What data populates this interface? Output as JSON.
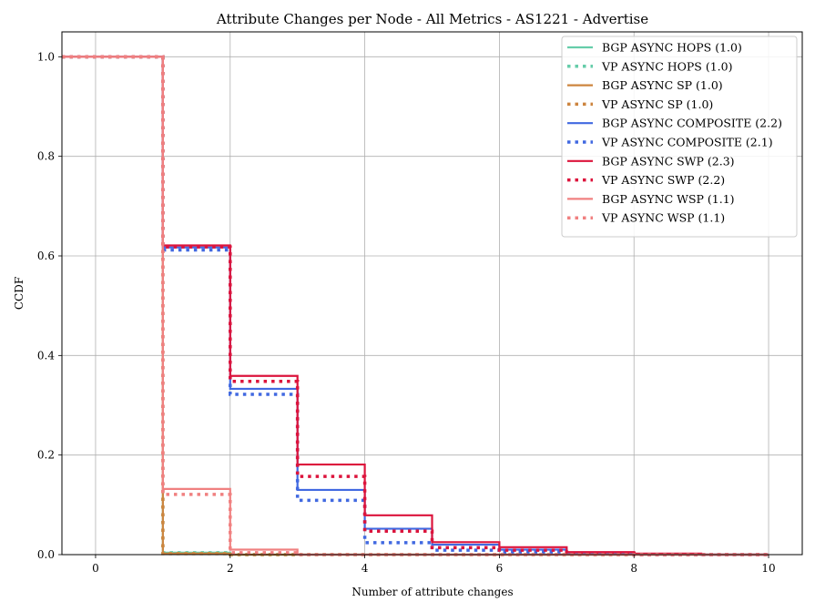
{
  "chart_data": {
    "type": "line",
    "title": "Attribute Changes per Node - All Metrics - AS1221 - Advertise",
    "xlabel": "Number of attribute changes",
    "ylabel": "CCDF",
    "xlim": [
      -0.5,
      10.5
    ],
    "ylim": [
      0,
      1.05
    ],
    "xticks": [
      0,
      2,
      4,
      6,
      8,
      10
    ],
    "yticks": [
      0.0,
      0.2,
      0.4,
      0.6,
      0.8,
      1.0
    ],
    "grid": true,
    "legend_position": "top-right",
    "series": [
      {
        "name": "BGP ASYNC HOPS (1.0)",
        "color": "#66cdaa",
        "dash": "solid",
        "x": [
          -0.5,
          1,
          2,
          3,
          4,
          5,
          6,
          7,
          8,
          9,
          10
        ],
        "y": [
          1.0,
          0.004,
          0.0,
          0.0,
          0.0,
          0.0,
          0.0,
          0.0,
          0.0,
          0.0,
          0.0
        ]
      },
      {
        "name": "VP ASYNC HOPS (1.0)",
        "color": "#66cdaa",
        "dash": "dotted",
        "x": [
          -0.5,
          1,
          2,
          3,
          4,
          5,
          6,
          7,
          8,
          9,
          10
        ],
        "y": [
          1.0,
          0.004,
          0.0,
          0.0,
          0.0,
          0.0,
          0.0,
          0.0,
          0.0,
          0.0,
          0.0
        ]
      },
      {
        "name": "BGP ASYNC SP (1.0)",
        "color": "#cd853f",
        "dash": "solid",
        "x": [
          -0.5,
          1,
          2,
          3,
          4,
          5,
          6,
          7,
          8,
          9,
          10
        ],
        "y": [
          1.0,
          0.002,
          0.0,
          0.0,
          0.0,
          0.0,
          0.0,
          0.0,
          0.0,
          0.0,
          0.0
        ]
      },
      {
        "name": "VP ASYNC SP (1.0)",
        "color": "#cd853f",
        "dash": "dotted",
        "x": [
          -0.5,
          1,
          2,
          3,
          4,
          5,
          6,
          7,
          8,
          9,
          10
        ],
        "y": [
          1.0,
          0.002,
          0.0,
          0.0,
          0.0,
          0.0,
          0.0,
          0.0,
          0.0,
          0.0,
          0.0
        ]
      },
      {
        "name": "BGP ASYNC COMPOSITE (2.2)",
        "color": "#4169e1",
        "dash": "solid",
        "x": [
          -0.5,
          1,
          2,
          3,
          4,
          5,
          6,
          7,
          8,
          9,
          10
        ],
        "y": [
          1.0,
          0.617,
          0.333,
          0.13,
          0.052,
          0.02,
          0.01,
          0.004,
          0.001,
          0.0,
          0.0
        ]
      },
      {
        "name": "VP ASYNC COMPOSITE (2.1)",
        "color": "#4169e1",
        "dash": "dotted",
        "x": [
          -0.5,
          1,
          2,
          3,
          4,
          5,
          6,
          7,
          8,
          9,
          10
        ],
        "y": [
          1.0,
          0.612,
          0.322,
          0.109,
          0.024,
          0.009,
          0.005,
          0.002,
          0.0,
          0.0,
          0.0
        ]
      },
      {
        "name": "BGP ASYNC SWP (2.3)",
        "color": "#dc143c",
        "dash": "solid",
        "x": [
          -0.5,
          1,
          2,
          3,
          4,
          5,
          6,
          7,
          8,
          9,
          10
        ],
        "y": [
          1.0,
          0.621,
          0.359,
          0.181,
          0.079,
          0.025,
          0.015,
          0.005,
          0.002,
          0.0,
          0.0
        ]
      },
      {
        "name": "VP ASYNC SWP (2.2)",
        "color": "#dc143c",
        "dash": "dotted",
        "x": [
          -0.5,
          1,
          2,
          3,
          4,
          5,
          6,
          7,
          8,
          9,
          10
        ],
        "y": [
          1.0,
          0.618,
          0.348,
          0.157,
          0.047,
          0.014,
          0.009,
          0.003,
          0.0,
          0.0,
          0.0
        ]
      },
      {
        "name": "BGP ASYNC WSP (1.1)",
        "color": "#f08080",
        "dash": "solid",
        "x": [
          -0.5,
          1,
          2,
          3,
          4,
          5,
          6,
          7,
          8,
          9,
          10
        ],
        "y": [
          1.0,
          0.132,
          0.01,
          0.0,
          0.0,
          0.0,
          0.0,
          0.0,
          0.0,
          0.0,
          0.0
        ]
      },
      {
        "name": "VP ASYNC WSP (1.1)",
        "color": "#f08080",
        "dash": "dotted",
        "x": [
          -0.5,
          1,
          2,
          3,
          4,
          5,
          6,
          7,
          8,
          9,
          10
        ],
        "y": [
          1.0,
          0.121,
          0.004,
          0.0,
          0.0,
          0.0,
          0.0,
          0.0,
          0.0,
          0.0,
          0.0
        ]
      }
    ]
  }
}
